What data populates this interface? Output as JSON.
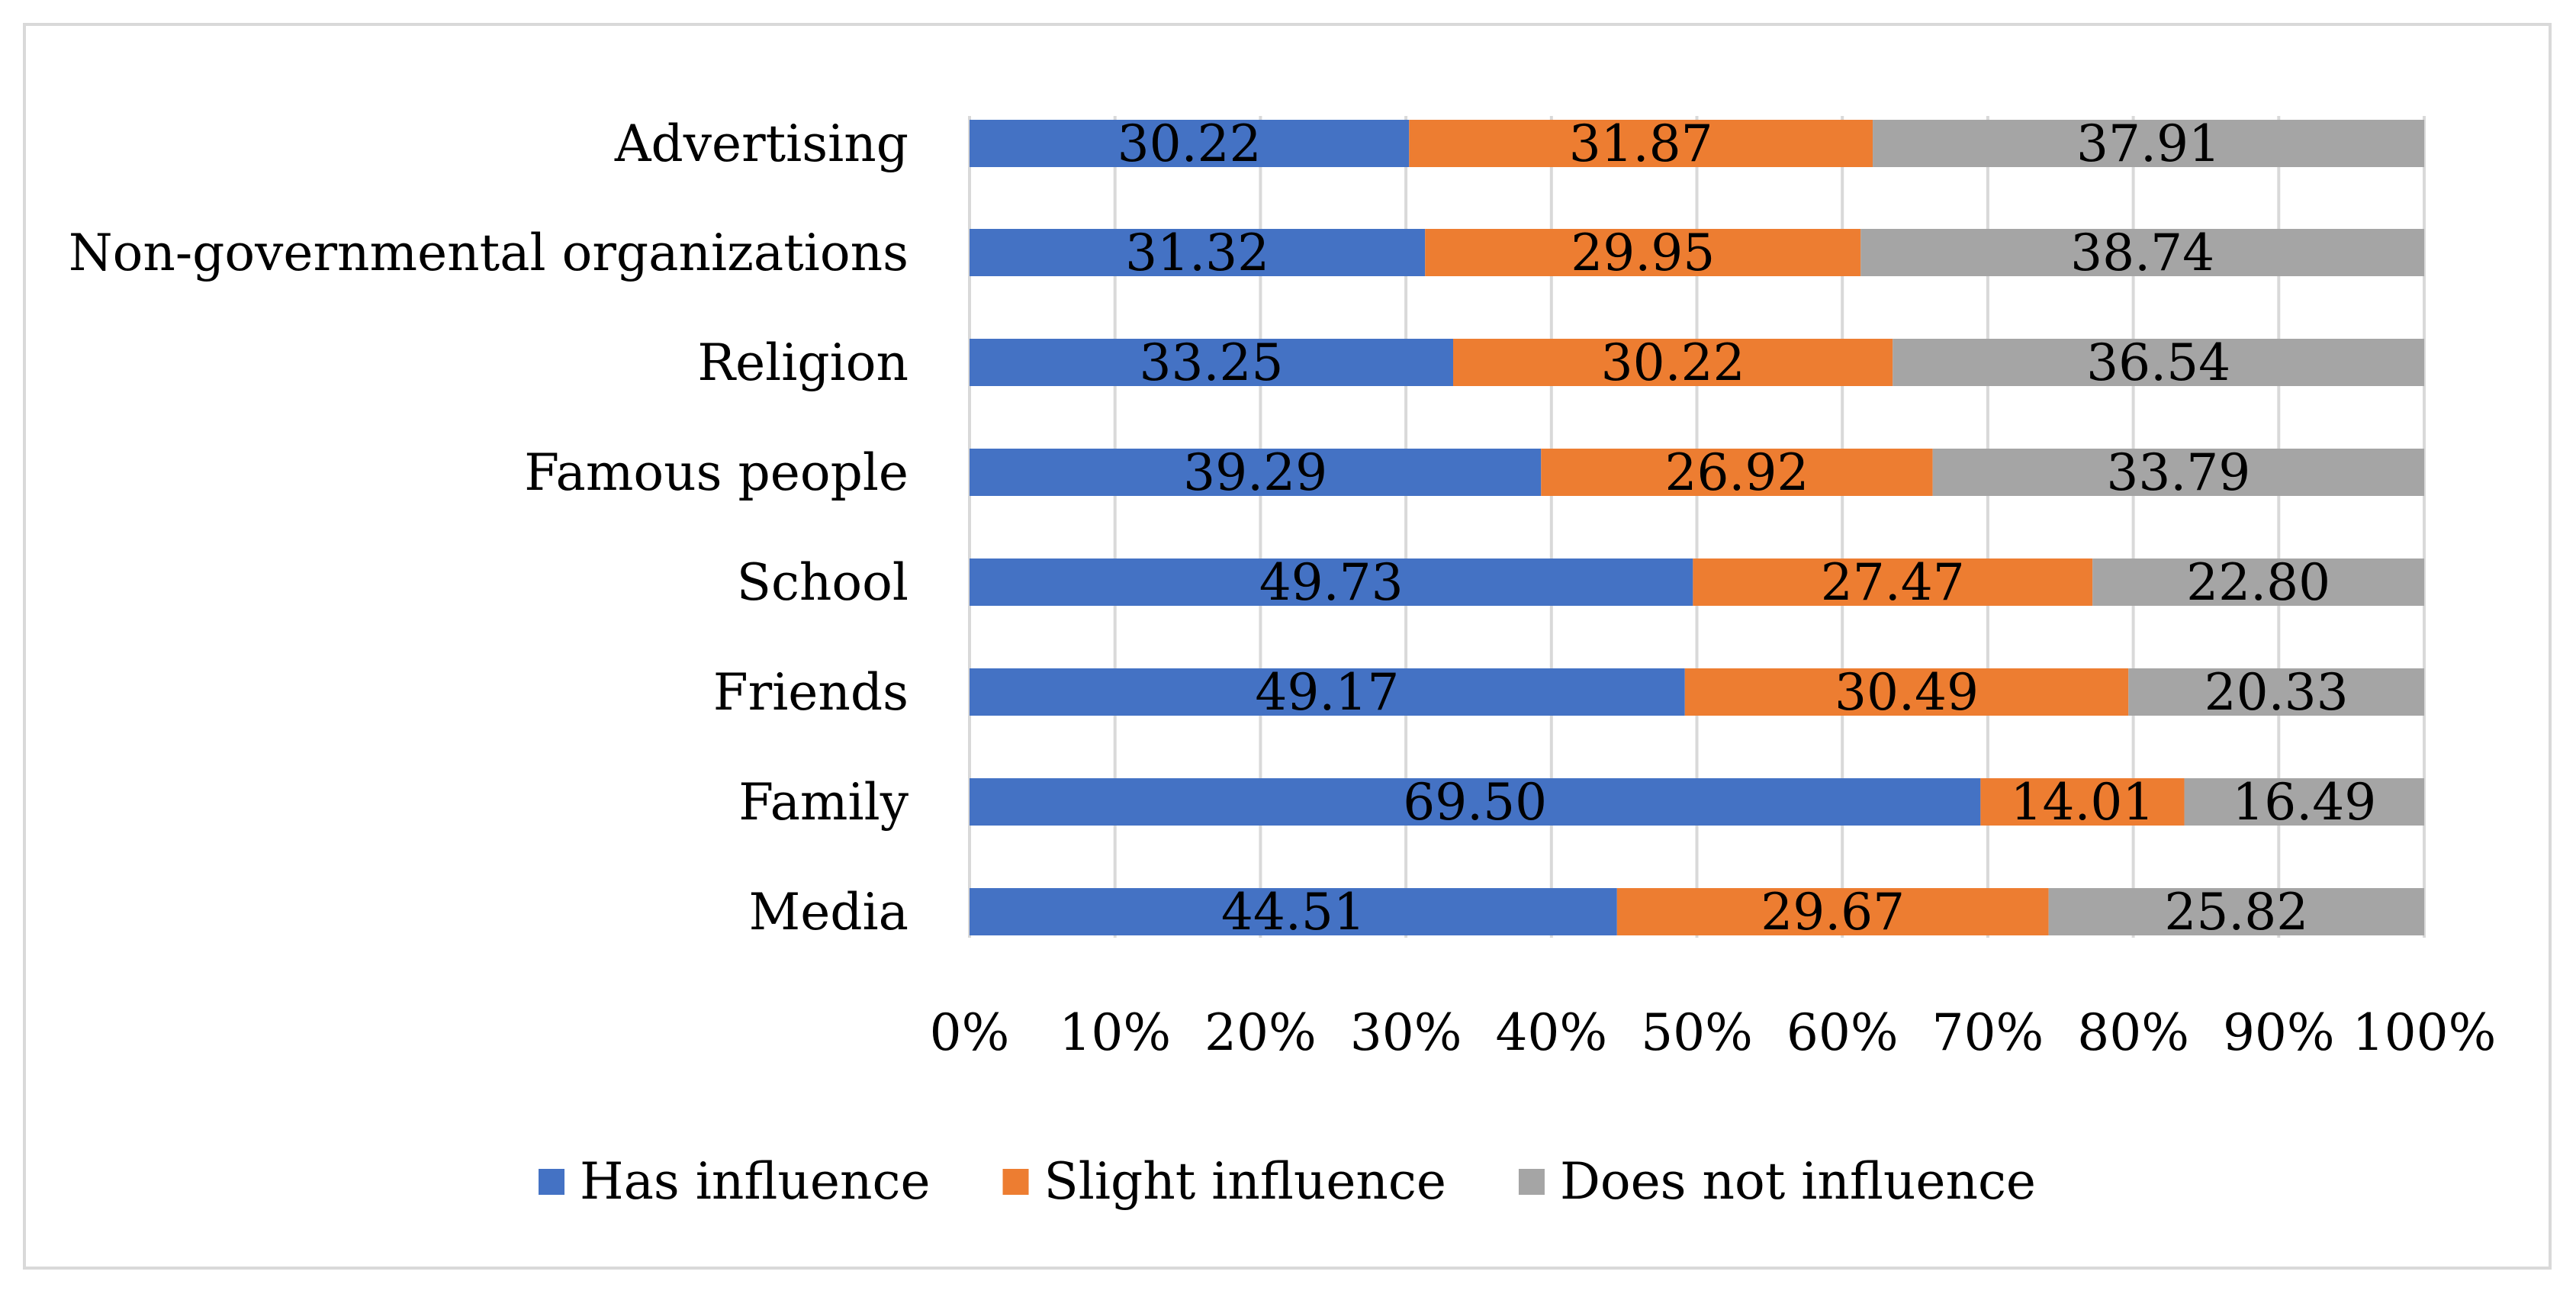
{
  "chart_data": {
    "type": "bar",
    "orientation": "horizontal",
    "stacked": "percent",
    "title": "",
    "xlabel": "",
    "ylabel": "",
    "xlim": [
      0,
      100
    ],
    "grid": true,
    "legend_position": "bottom",
    "categories": [
      "Advertising",
      "Non-governmental organizations",
      "Religion",
      "Famous people",
      "School",
      "Friends",
      "Family",
      "Media"
    ],
    "x_ticks": [
      "0%",
      "10%",
      "20%",
      "30%",
      "40%",
      "50%",
      "60%",
      "70%",
      "80%",
      "90%",
      "100%"
    ],
    "series": [
      {
        "name": "Has influence",
        "color": "#4472c4",
        "values": [
          30.22,
          31.32,
          33.25,
          39.29,
          49.73,
          49.17,
          69.5,
          44.51
        ],
        "labels": [
          "30.22",
          "31.32",
          "33.25",
          "39.29",
          "49.73",
          "49.17",
          "69.50",
          "44.51"
        ]
      },
      {
        "name": "Slight influence",
        "color": "#ed7d31",
        "values": [
          31.87,
          29.95,
          30.22,
          26.92,
          27.47,
          30.49,
          14.01,
          29.67
        ],
        "labels": [
          "31.87",
          "29.95",
          "30.22",
          "26.92",
          "27.47",
          "30.49",
          "14.01",
          "29.67"
        ]
      },
      {
        "name": "Does not influence",
        "color": "#a5a5a5",
        "values": [
          37.91,
          38.74,
          36.54,
          33.79,
          22.8,
          20.33,
          16.49,
          25.82
        ],
        "labels": [
          "37.91",
          "38.74",
          "36.54",
          "33.79",
          "22.80",
          "20.33",
          "16.49",
          "25.82"
        ]
      }
    ]
  }
}
